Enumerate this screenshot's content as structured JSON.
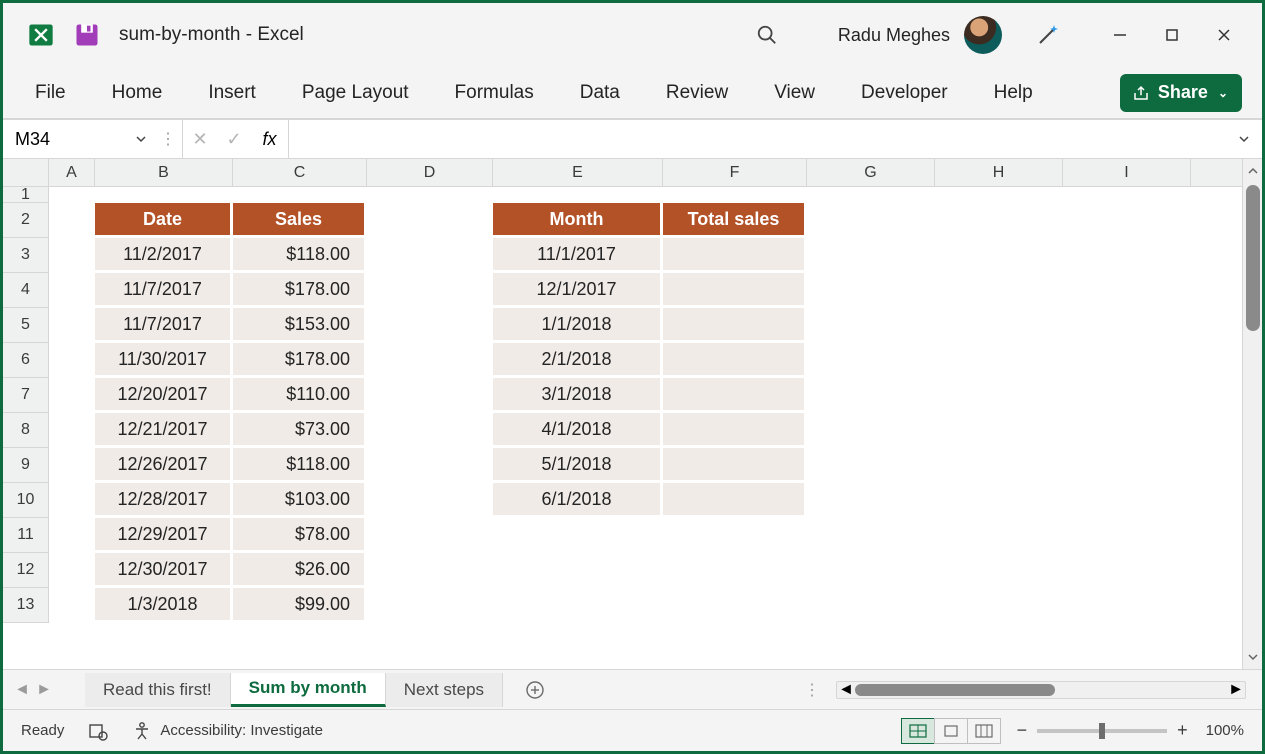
{
  "titlebar": {
    "doc_name": "sum-by-month",
    "separator": "  -  ",
    "app_name": "Excel",
    "user_name": "Radu Meghes"
  },
  "ribbon": {
    "tabs": [
      "File",
      "Home",
      "Insert",
      "Page Layout",
      "Formulas",
      "Data",
      "Review",
      "View",
      "Developer",
      "Help"
    ],
    "share_label": "Share"
  },
  "formulabar": {
    "namebox_value": "M34",
    "fx_label": "fx",
    "formula_value": ""
  },
  "grid": {
    "col_widths": {
      "rowhdr": 46,
      "A": 46,
      "B": 138,
      "C": 134,
      "D": 126,
      "E": 170,
      "F": 144,
      "G": 128,
      "H": 128,
      "I": 128
    },
    "columns": [
      "A",
      "B",
      "C",
      "D",
      "E",
      "F",
      "G",
      "H",
      "I"
    ],
    "row_numbers": [
      1,
      2,
      3,
      4,
      5,
      6,
      7,
      8,
      9,
      10,
      11,
      12,
      13
    ],
    "header_bg": "#b35127",
    "header_fg": "#ffffff",
    "data_bg": "#f0ebe7",
    "table1": {
      "headers": [
        "Date",
        "Sales"
      ],
      "rows": [
        [
          "11/2/2017",
          "$118.00"
        ],
        [
          "11/7/2017",
          "$178.00"
        ],
        [
          "11/7/2017",
          "$153.00"
        ],
        [
          "11/30/2017",
          "$178.00"
        ],
        [
          "12/20/2017",
          "$110.00"
        ],
        [
          "12/21/2017",
          "$73.00"
        ],
        [
          "12/26/2017",
          "$118.00"
        ],
        [
          "12/28/2017",
          "$103.00"
        ],
        [
          "12/29/2017",
          "$78.00"
        ],
        [
          "12/30/2017",
          "$26.00"
        ],
        [
          "1/3/2018",
          "$99.00"
        ]
      ]
    },
    "table2": {
      "headers": [
        "Month",
        "Total sales"
      ],
      "rows": [
        [
          "11/1/2017",
          ""
        ],
        [
          "12/1/2017",
          ""
        ],
        [
          "1/1/2018",
          ""
        ],
        [
          "2/1/2018",
          ""
        ],
        [
          "3/1/2018",
          ""
        ],
        [
          "4/1/2018",
          ""
        ],
        [
          "5/1/2018",
          ""
        ],
        [
          "6/1/2018",
          ""
        ]
      ]
    }
  },
  "sheets": {
    "tabs": [
      "Read this first!",
      "Sum by month",
      "Next steps"
    ],
    "active_index": 1
  },
  "statusbar": {
    "ready": "Ready",
    "accessibility": "Accessibility: Investigate",
    "zoom": "100%"
  }
}
